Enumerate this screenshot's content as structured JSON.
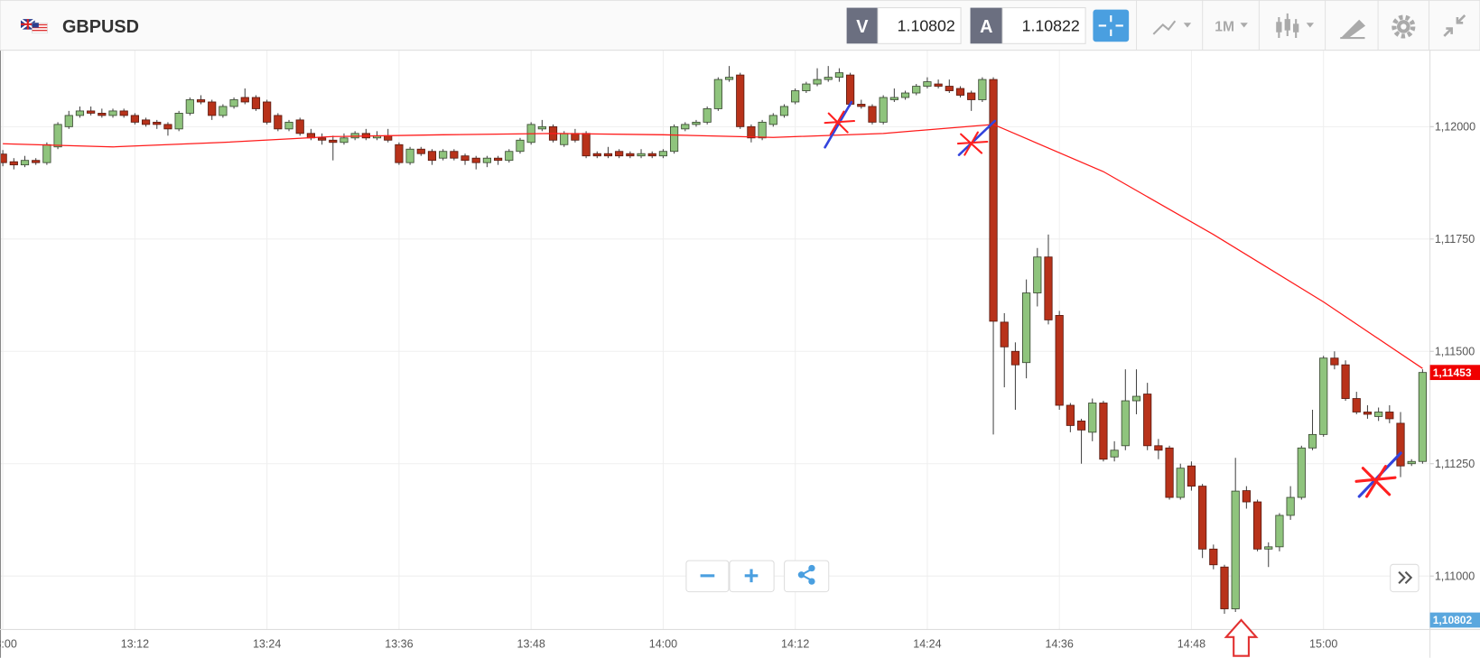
{
  "toolbar": {
    "symbol": "GBPUSD",
    "sell_label": "V",
    "sell_price": "1.10802",
    "buy_label": "A",
    "buy_price": "1.10822",
    "timeframe": "1M"
  },
  "chart_data": {
    "type": "candlestick",
    "categories": [
      "13:00",
      null,
      null,
      null,
      null,
      null,
      null,
      null,
      null,
      null,
      null,
      null,
      "13:12",
      null,
      null,
      null,
      null,
      null,
      null,
      null,
      null,
      null,
      null,
      null,
      "13:24",
      null,
      null,
      null,
      null,
      null,
      null,
      null,
      null,
      null,
      null,
      null,
      "13:36",
      null,
      null,
      null,
      null,
      null,
      null,
      null,
      null,
      null,
      null,
      null,
      "13:48",
      null,
      null,
      null,
      null,
      null,
      null,
      null,
      null,
      null,
      null,
      null,
      "14:00",
      null,
      null,
      null,
      null,
      null,
      null,
      null,
      null,
      null,
      null,
      null,
      "14:12",
      null,
      null,
      null,
      null,
      null,
      null,
      null,
      null,
      null,
      null,
      null,
      "14:24",
      null,
      null,
      null,
      null,
      null,
      null,
      null,
      null,
      null,
      null,
      null,
      "14:36",
      null,
      null,
      null,
      null,
      null,
      null,
      null,
      null,
      null,
      null,
      null,
      "14:48",
      null,
      null,
      null,
      null,
      null,
      null,
      null,
      null,
      null,
      null,
      null,
      "15:00",
      null,
      null,
      null,
      null,
      null,
      null,
      null,
      null,
      null
    ],
    "ohlc": [
      [
        1.11939,
        1.11948,
        1.11912,
        1.1192
      ],
      [
        1.11922,
        1.1193,
        1.11905,
        1.11915
      ],
      [
        1.11915,
        1.11935,
        1.1191,
        1.11925
      ],
      [
        1.11925,
        1.1193,
        1.11915,
        1.1192
      ],
      [
        1.1192,
        1.11965,
        1.11915,
        1.1196
      ],
      [
        1.11955,
        1.1201,
        1.1195,
        1.12005
      ],
      [
        1.12,
        1.12035,
        1.11995,
        1.12025
      ],
      [
        1.12025,
        1.12045,
        1.1202,
        1.12035
      ],
      [
        1.12035,
        1.12045,
        1.12025,
        1.1203
      ],
      [
        1.1203,
        1.1204,
        1.1202,
        1.12025
      ],
      [
        1.12025,
        1.1204,
        1.1202,
        1.12035
      ],
      [
        1.12035,
        1.1204,
        1.1202,
        1.12025
      ],
      [
        1.12025,
        1.1203,
        1.12005,
        1.1201
      ],
      [
        1.12015,
        1.1202,
        1.12,
        1.12005
      ],
      [
        1.1201,
        1.12015,
        1.11995,
        1.12005
      ],
      [
        1.12005,
        1.1201,
        1.1198,
        1.11995
      ],
      [
        1.11995,
        1.12035,
        1.1199,
        1.1203
      ],
      [
        1.1203,
        1.12065,
        1.12025,
        1.1206
      ],
      [
        1.1206,
        1.1207,
        1.1205,
        1.12055
      ],
      [
        1.12055,
        1.1206,
        1.12015,
        1.12025
      ],
      [
        1.12025,
        1.1205,
        1.1202,
        1.12045
      ],
      [
        1.12045,
        1.12065,
        1.1204,
        1.1206
      ],
      [
        1.12065,
        1.12085,
        1.1205,
        1.12055
      ],
      [
        1.12065,
        1.1207,
        1.12035,
        1.1204
      ],
      [
        1.12055,
        1.1206,
        1.12005,
        1.1201
      ],
      [
        1.12025,
        1.1203,
        1.1199,
        1.11995
      ],
      [
        1.11995,
        1.12015,
        1.1199,
        1.1201
      ],
      [
        1.12015,
        1.1202,
        1.1198,
        1.11985
      ],
      [
        1.11985,
        1.11995,
        1.1197,
        1.11975
      ],
      [
        1.11975,
        1.11985,
        1.1196,
        1.1197
      ],
      [
        1.1197,
        1.1198,
        1.11925,
        1.11965
      ],
      [
        1.11965,
        1.11985,
        1.1196,
        1.11975
      ],
      [
        1.11975,
        1.1199,
        1.1197,
        1.11985
      ],
      [
        1.11985,
        1.11995,
        1.1197,
        1.11975
      ],
      [
        1.11975,
        1.1199,
        1.1197,
        1.1198
      ],
      [
        1.1198,
        1.11995,
        1.11965,
        1.1197
      ],
      [
        1.1196,
        1.11965,
        1.11915,
        1.1192
      ],
      [
        1.1192,
        1.11955,
        1.11915,
        1.1195
      ],
      [
        1.1195,
        1.11955,
        1.11935,
        1.1194
      ],
      [
        1.11945,
        1.1195,
        1.11915,
        1.11925
      ],
      [
        1.1193,
        1.1195,
        1.11925,
        1.11945
      ],
      [
        1.11945,
        1.1195,
        1.11925,
        1.1193
      ],
      [
        1.11935,
        1.1194,
        1.11915,
        1.11925
      ],
      [
        1.1193,
        1.11935,
        1.11905,
        1.1192
      ],
      [
        1.1192,
        1.11935,
        1.1191,
        1.1193
      ],
      [
        1.1193,
        1.11935,
        1.11915,
        1.11925
      ],
      [
        1.11925,
        1.1195,
        1.1192,
        1.11945
      ],
      [
        1.11945,
        1.11975,
        1.1194,
        1.1197
      ],
      [
        1.11965,
        1.1201,
        1.1196,
        1.12005
      ],
      [
        1.11995,
        1.12015,
        1.1199,
        1.12
      ],
      [
        1.12,
        1.12005,
        1.11965,
        1.1197
      ],
      [
        1.1196,
        1.1199,
        1.11955,
        1.11985
      ],
      [
        1.11985,
        1.11995,
        1.11965,
        1.1197
      ],
      [
        1.11985,
        1.1199,
        1.1193,
        1.11935
      ],
      [
        1.1194,
        1.11945,
        1.1193,
        1.11935
      ],
      [
        1.1194,
        1.11955,
        1.1193,
        1.11935
      ],
      [
        1.11945,
        1.1195,
        1.1193,
        1.11935
      ],
      [
        1.1194,
        1.11945,
        1.1193,
        1.11935
      ],
      [
        1.11935,
        1.1195,
        1.1193,
        1.1194
      ],
      [
        1.1194,
        1.11945,
        1.1193,
        1.11935
      ],
      [
        1.11935,
        1.1195,
        1.1193,
        1.11945
      ],
      [
        1.11945,
        1.12005,
        1.1194,
        1.12
      ],
      [
        1.11995,
        1.1201,
        1.1199,
        1.12005
      ],
      [
        1.12005,
        1.12015,
        1.12,
        1.1201
      ],
      [
        1.1201,
        1.12045,
        1.12005,
        1.1204
      ],
      [
        1.1204,
        1.1211,
        1.12035,
        1.12105
      ],
      [
        1.12105,
        1.12135,
        1.121,
        1.1211
      ],
      [
        1.12115,
        1.1212,
        1.11995,
        1.12
      ],
      [
        1.12,
        1.12005,
        1.11965,
        1.11975
      ],
      [
        1.11975,
        1.12015,
        1.1197,
        1.1201
      ],
      [
        1.12005,
        1.1203,
        1.12,
        1.12025
      ],
      [
        1.12025,
        1.1205,
        1.1202,
        1.12045
      ],
      [
        1.12055,
        1.12085,
        1.1205,
        1.1208
      ],
      [
        1.1208,
        1.121,
        1.12075,
        1.12095
      ],
      [
        1.12095,
        1.1213,
        1.1209,
        1.12105
      ],
      [
        1.12105,
        1.12135,
        1.121,
        1.1211
      ],
      [
        1.1211,
        1.1213,
        1.121,
        1.1212
      ],
      [
        1.12115,
        1.1212,
        1.12045,
        1.1205
      ],
      [
        1.1205,
        1.1206,
        1.1204,
        1.12045
      ],
      [
        1.12045,
        1.1205,
        1.12005,
        1.1201
      ],
      [
        1.1201,
        1.1207,
        1.12005,
        1.12065
      ],
      [
        1.1206,
        1.12085,
        1.12055,
        1.12065
      ],
      [
        1.12065,
        1.1208,
        1.1206,
        1.12075
      ],
      [
        1.12075,
        1.12095,
        1.1207,
        1.1209
      ],
      [
        1.1209,
        1.1211,
        1.12085,
        1.121
      ],
      [
        1.12095,
        1.12105,
        1.12085,
        1.1209
      ],
      [
        1.1209,
        1.12105,
        1.12075,
        1.1208
      ],
      [
        1.12085,
        1.1209,
        1.12065,
        1.1207
      ],
      [
        1.12075,
        1.1208,
        1.12035,
        1.1206
      ],
      [
        1.1206,
        1.1211,
        1.12055,
        1.12105
      ],
      [
        1.12105,
        1.1211,
        1.11315,
        1.11567
      ],
      [
        1.11565,
        1.11585,
        1.1142,
        1.1151
      ],
      [
        1.115,
        1.1152,
        1.1137,
        1.1147
      ],
      [
        1.11475,
        1.1166,
        1.1144,
        1.1163
      ],
      [
        1.1163,
        1.1173,
        1.116,
        1.1171
      ],
      [
        1.1171,
        1.1176,
        1.1156,
        1.1157
      ],
      [
        1.1158,
        1.1159,
        1.1137,
        1.1138
      ],
      [
        1.1138,
        1.11385,
        1.1132,
        1.11335
      ],
      [
        1.11345,
        1.1135,
        1.1125,
        1.11325
      ],
      [
        1.1132,
        1.11395,
        1.113,
        1.11385
      ],
      [
        1.11385,
        1.1139,
        1.11255,
        1.1126
      ],
      [
        1.11265,
        1.113,
        1.11255,
        1.1128
      ],
      [
        1.1129,
        1.1146,
        1.1128,
        1.1139
      ],
      [
        1.1139,
        1.1146,
        1.1136,
        1.114
      ],
      [
        1.11405,
        1.1143,
        1.1128,
        1.1129
      ],
      [
        1.1129,
        1.11305,
        1.1126,
        1.1128
      ],
      [
        1.11285,
        1.1129,
        1.1117,
        1.11175
      ],
      [
        1.11175,
        1.1125,
        1.1117,
        1.1124
      ],
      [
        1.11245,
        1.11255,
        1.1119,
        1.112
      ],
      [
        1.112,
        1.11205,
        1.1104,
        1.1106
      ],
      [
        1.1106,
        1.1107,
        1.11015,
        1.11025
      ],
      [
        1.1102,
        1.11025,
        1.10916,
        1.10927
      ],
      [
        1.10927,
        1.11263,
        1.1092,
        1.11189
      ],
      [
        1.1119,
        1.112,
        1.1115,
        1.11165
      ],
      [
        1.11165,
        1.1117,
        1.11055,
        1.1106
      ],
      [
        1.1106,
        1.11075,
        1.1102,
        1.11065
      ],
      [
        1.11065,
        1.1114,
        1.11055,
        1.11135
      ],
      [
        1.11135,
        1.112,
        1.11125,
        1.11175
      ],
      [
        1.11175,
        1.1129,
        1.1117,
        1.11285
      ],
      [
        1.11285,
        1.1137,
        1.1128,
        1.11315
      ],
      [
        1.11315,
        1.1149,
        1.1131,
        1.11485
      ],
      [
        1.11485,
        1.115,
        1.1146,
        1.1147
      ],
      [
        1.1147,
        1.1148,
        1.1139,
        1.11395
      ],
      [
        1.11395,
        1.1141,
        1.1136,
        1.11365
      ],
      [
        1.11365,
        1.1138,
        1.1135,
        1.1136
      ],
      [
        1.11355,
        1.11375,
        1.11345,
        1.11365
      ],
      [
        1.11365,
        1.1138,
        1.1134,
        1.1135
      ],
      [
        1.1134,
        1.11365,
        1.1122,
        1.11245
      ],
      [
        1.1125,
        1.1126,
        1.11245,
        1.11255
      ],
      [
        1.11255,
        1.1146,
        1.1125,
        1.11453
      ]
    ],
    "up_color": "#8fc47d",
    "down_color": "#b8321a",
    "ma": {
      "color": "#ff1a1a",
      "x": [
        0,
        10,
        20,
        30,
        40,
        50,
        60,
        70,
        80,
        90,
        100,
        110,
        120,
        129
      ],
      "values": [
        1.11962,
        1.11955,
        1.11965,
        1.11978,
        1.11982,
        1.11985,
        1.11982,
        1.11976,
        1.11985,
        1.12005,
        1.119,
        1.1176,
        1.1161,
        1.11462
      ]
    },
    "ylim": [
      1.10881,
      1.12166
    ],
    "yticks": [
      {
        "value": 1.11,
        "label": "1,11000"
      },
      {
        "value": 1.1125,
        "label": "1,11250"
      },
      {
        "value": 1.115,
        "label": "1,11500"
      },
      {
        "value": 1.1175,
        "label": "1,11750"
      },
      {
        "value": 1.12,
        "label": "1,12000"
      }
    ],
    "price_tags": [
      {
        "value": 1.11453,
        "label": "1,11453",
        "color": "#f00000"
      },
      {
        "value": 1.10802,
        "label": "1,10802",
        "color": "#5aa7de"
      }
    ],
    "grid": true
  }
}
